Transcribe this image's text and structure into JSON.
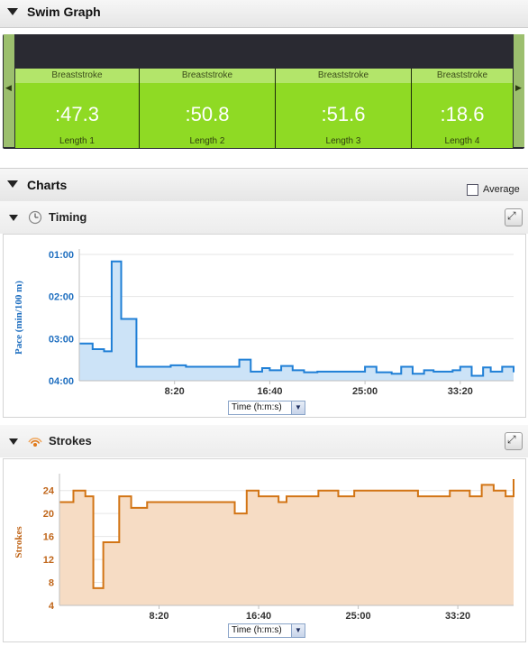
{
  "swim_graph": {
    "title": "Swim Graph",
    "lengths": [
      {
        "stroke": "Breaststroke",
        "time": ":47.3",
        "label": "Length 1"
      },
      {
        "stroke": "Breaststroke",
        "time": ":50.8",
        "label": "Length 2"
      },
      {
        "stroke": "Breaststroke",
        "time": ":51.6",
        "label": "Length 3"
      },
      {
        "stroke": "Breaststroke",
        "time": ":18.6",
        "label": "Length 4"
      }
    ],
    "nav_left": "◀",
    "nav_right": "▶"
  },
  "charts": {
    "title": "Charts",
    "average_label": "Average",
    "average_checked": false
  },
  "timing": {
    "title": "Timing",
    "icon": "clock-icon",
    "expand_icon": "expand-icon",
    "x_select": "Time (h:m:s)"
  },
  "strokes": {
    "title": "Strokes",
    "icon": "signal-icon",
    "expand_icon": "expand-icon",
    "x_select": "Time (h:m:s)"
  },
  "colors": {
    "pace_line": "#1f7fd6",
    "pace_fill": "#cce3f7",
    "stroke_line": "#d27414",
    "stroke_fill": "#f6dcc4",
    "length_green": "#8fda24"
  },
  "chart_data": [
    {
      "type": "area",
      "ylabel": "Pace (min/100 m)",
      "y_ticks": [
        "01:00",
        "02:00",
        "03:00",
        "04:00"
      ],
      "x_ticks": [
        "8:20",
        "16:40",
        "25:00",
        "33:20"
      ],
      "xlim": [
        0,
        2280
      ],
      "ylim_seconds": [
        60,
        240
      ],
      "y_inverted": true,
      "x": [
        0,
        70,
        130,
        170,
        220,
        300,
        480,
        560,
        840,
        900,
        960,
        1000,
        1060,
        1120,
        1180,
        1250,
        1500,
        1560,
        1640,
        1690,
        1750,
        1810,
        1860,
        1960,
        2000,
        2060,
        2120,
        2160,
        2220,
        2280
      ],
      "y": [
        187,
        195,
        198,
        70,
        152,
        220,
        218,
        220,
        210,
        227,
        222,
        225,
        219,
        225,
        228,
        227,
        220,
        228,
        230,
        220,
        230,
        225,
        227,
        225,
        220,
        233,
        221,
        227,
        220,
        228
      ]
    },
    {
      "type": "area",
      "ylabel": "Strokes",
      "y_ticks": [
        "4",
        "8",
        "12",
        "16",
        "20",
        "24"
      ],
      "x_ticks": [
        "8:20",
        "16:40",
        "25:00",
        "33:20"
      ],
      "xlim": [
        0,
        2280
      ],
      "ylim": [
        4,
        26
      ],
      "x": [
        0,
        70,
        130,
        170,
        220,
        300,
        360,
        440,
        880,
        940,
        1000,
        1100,
        1140,
        1240,
        1300,
        1400,
        1480,
        1700,
        1800,
        1960,
        2060,
        2120,
        2180,
        2240,
        2280
      ],
      "y": [
        22,
        24,
        23,
        7,
        15,
        23,
        21,
        22,
        20,
        24,
        23,
        22,
        23,
        23,
        24,
        23,
        24,
        24,
        23,
        24,
        23,
        25,
        24,
        23,
        26
      ]
    }
  ]
}
